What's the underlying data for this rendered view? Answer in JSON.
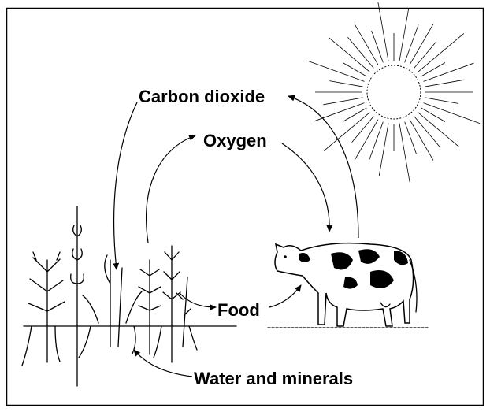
{
  "labels": {
    "carbon_dioxide": "Carbon dioxide",
    "oxygen": "Oxygen",
    "food": "Food",
    "water_and_minerals": "Water and minerals"
  }
}
